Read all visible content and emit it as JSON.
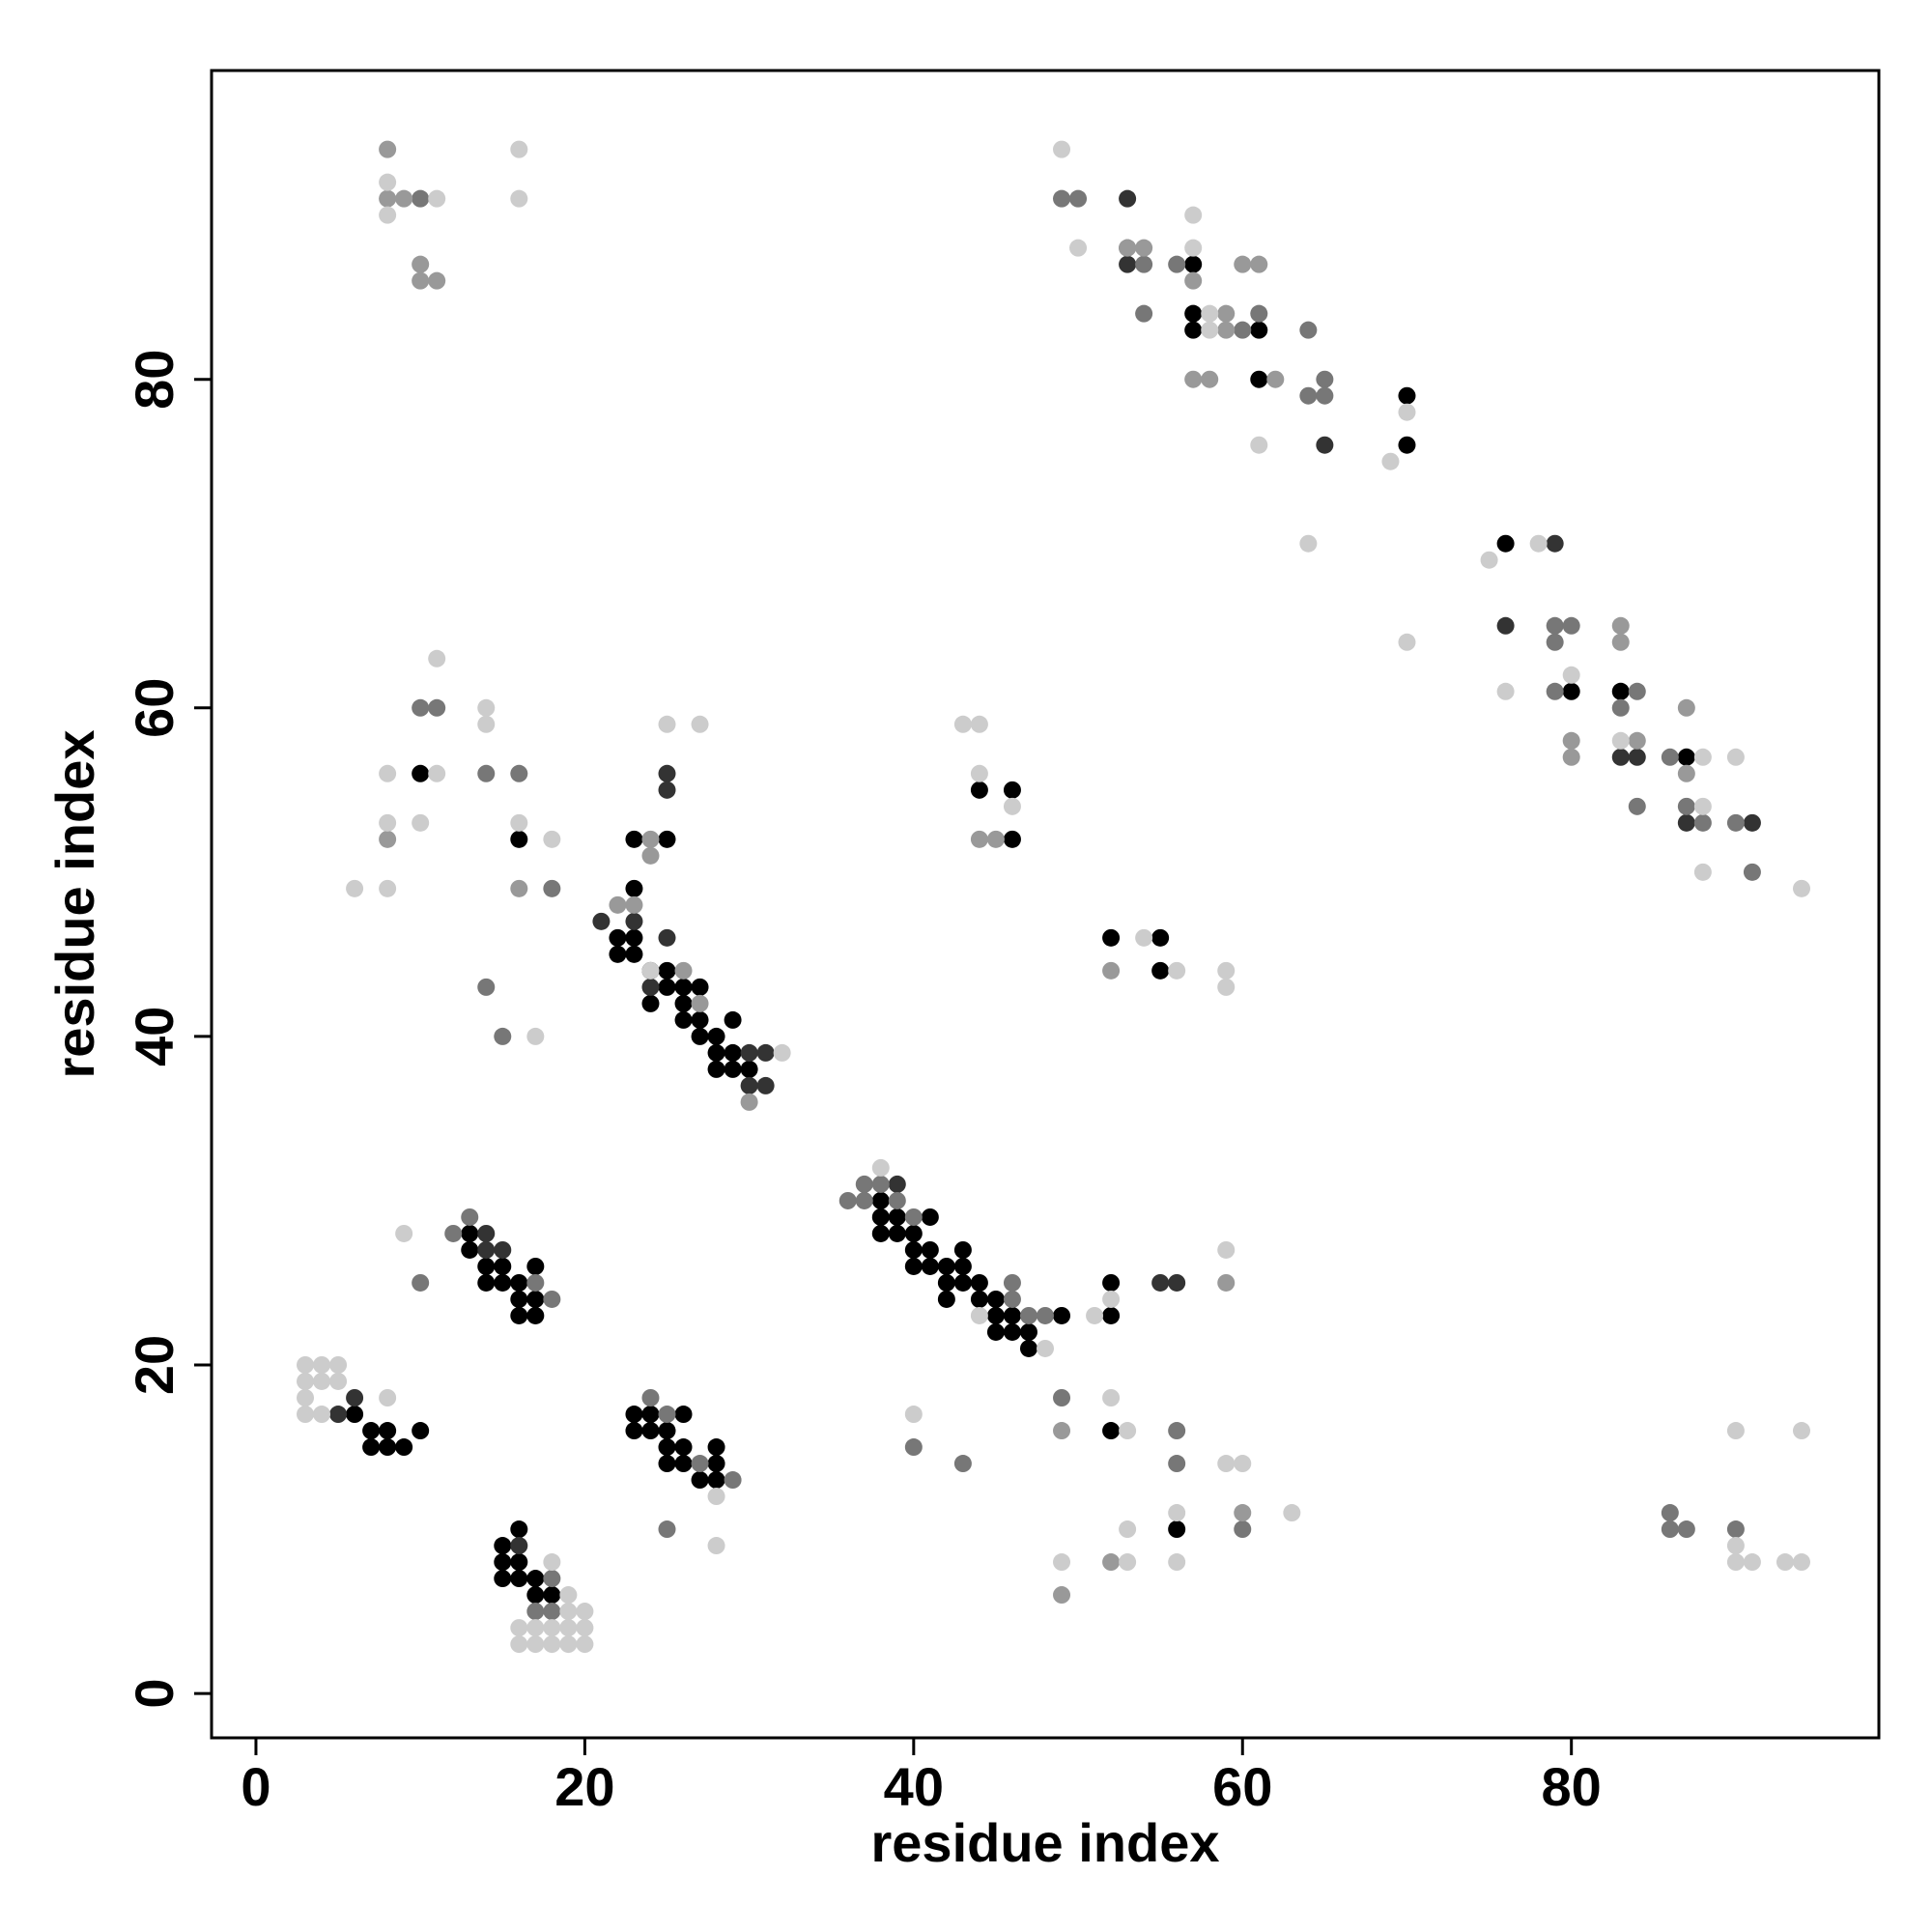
{
  "chart_data": {
    "type": "scatter",
    "x_label": "residue index",
    "y_label": "residue index",
    "xlim": [
      -2.7,
      98.7
    ],
    "ylim": [
      -2.7,
      98.8
    ],
    "xticks": [
      0,
      20,
      40,
      60,
      80
    ],
    "yticks": [
      0,
      20,
      40,
      60,
      80
    ],
    "grid": false,
    "series": [
      {
        "color": "#000000",
        "x": [
          6,
          7,
          7,
          8,
          9,
          10,
          8,
          13,
          13,
          14,
          14,
          15,
          15,
          16,
          16,
          17,
          17,
          17,
          16,
          15,
          15,
          15,
          16,
          16,
          16,
          17,
          17,
          18,
          23,
          23,
          24,
          25,
          25,
          26,
          26,
          27,
          28,
          28,
          28,
          26,
          24,
          25,
          22,
          22,
          23,
          23,
          23,
          24,
          24,
          25,
          25,
          26,
          26,
          26,
          27,
          27,
          27,
          28,
          28,
          28,
          29,
          29,
          29,
          30,
          23,
          25,
          16,
          10,
          38,
          38,
          38,
          39,
          39,
          40,
          40,
          40,
          41,
          41,
          41,
          42,
          42,
          42,
          43,
          43,
          43,
          44,
          44,
          45,
          45,
          45,
          46,
          46,
          47,
          47,
          49,
          52,
          52,
          52,
          56,
          44,
          46,
          46,
          52,
          55,
          55,
          57,
          61,
          70,
          76,
          80,
          83,
          87,
          57,
          57,
          61,
          70
        ],
        "values": [
          17,
          16,
          15,
          15,
          15,
          16,
          16,
          28,
          27,
          26,
          25,
          25,
          26,
          24,
          23,
          23,
          24,
          26,
          25,
          9,
          8,
          7,
          10,
          7,
          8,
          6,
          7,
          6,
          17,
          16,
          16,
          15,
          14,
          14,
          15,
          13,
          13,
          14,
          15,
          17,
          17,
          16,
          46,
          45,
          45,
          46,
          49,
          44,
          42,
          43,
          44,
          41,
          42,
          43,
          40,
          41,
          43,
          39,
          38,
          40,
          38,
          39,
          41,
          38,
          52,
          52,
          52,
          56,
          28,
          29,
          30,
          28,
          29,
          26,
          27,
          28,
          26,
          27,
          29,
          24,
          25,
          26,
          25,
          26,
          27,
          24,
          25,
          22,
          23,
          24,
          22,
          23,
          21,
          22,
          23,
          23,
          25,
          16,
          10,
          55,
          55,
          52,
          46,
          46,
          44,
          87,
          83,
          76,
          70,
          61,
          61,
          57,
          84,
          83,
          80,
          79
        ]
      },
      {
        "color": "#333333",
        "x": [
          53,
          53,
          65,
          76,
          79,
          83,
          84,
          87,
          91,
          55,
          56,
          6,
          5,
          14,
          15,
          31,
          31,
          30,
          30,
          24,
          25,
          23,
          21,
          25,
          25,
          39,
          16,
          14
        ],
        "values": [
          91,
          87,
          76,
          65,
          70,
          57,
          57,
          53,
          53,
          25,
          25,
          18,
          17,
          27,
          27,
          39,
          37,
          39,
          37,
          43,
          46,
          47,
          47,
          56,
          55,
          31,
          9,
          28
        ]
      },
      {
        "color": "#777777",
        "x": [
          10,
          14,
          15,
          14,
          16,
          11,
          10,
          18,
          13,
          12,
          37,
          36,
          37,
          38,
          39,
          40,
          46,
          46,
          48,
          47,
          49,
          40,
          43,
          56,
          56,
          60,
          25,
          24,
          25,
          27,
          29,
          17,
          18,
          18,
          54,
          54,
          56,
          60,
          61,
          64,
          64,
          65,
          65,
          79,
          79,
          80,
          79,
          83,
          84,
          84,
          87,
          88,
          86,
          90,
          91,
          90,
          87,
          86,
          86,
          50,
          49,
          53,
          10,
          18,
          17
        ],
        "values": [
          25,
          43,
          40,
          56,
          56,
          60,
          60,
          49,
          29,
          28,
          31,
          30,
          30,
          31,
          30,
          29,
          24,
          25,
          23,
          23,
          18,
          15,
          14,
          14,
          16,
          10,
          10,
          18,
          17,
          14,
          13,
          5,
          5,
          7,
          84,
          87,
          87,
          83,
          84,
          83,
          79,
          80,
          79,
          64,
          65,
          65,
          61,
          60,
          61,
          54,
          54,
          53,
          57,
          53,
          50,
          10,
          10,
          10,
          11,
          91,
          91,
          88,
          91,
          24,
          25
        ]
      },
      {
        "color": "#999999",
        "x": [
          8,
          8,
          9,
          10,
          10,
          11,
          8,
          16,
          24,
          24,
          23,
          22,
          26,
          27,
          30,
          52,
          52,
          49,
          59,
          60,
          49,
          87,
          87,
          83,
          83,
          80,
          80,
          84,
          57,
          59,
          59,
          57,
          58,
          60,
          61,
          62,
          53,
          54,
          44,
          45
        ],
        "values": [
          94,
          91,
          91,
          87,
          86,
          86,
          52,
          49,
          51,
          52,
          48,
          48,
          44,
          42,
          36,
          44,
          8,
          16,
          25,
          11,
          6,
          60,
          56,
          64,
          65,
          58,
          57,
          58,
          86,
          83,
          84,
          80,
          80,
          87,
          87,
          80,
          88,
          88,
          52,
          52
        ]
      },
      {
        "color": "#cccccc",
        "x": [
          3,
          3,
          3,
          3,
          4,
          4,
          4,
          5,
          5,
          8,
          9,
          8,
          8,
          11,
          16,
          16,
          11,
          8,
          11,
          10,
          8,
          8,
          6,
          14,
          14,
          16,
          18,
          17,
          25,
          27,
          24,
          32,
          38,
          44,
          48,
          51,
          52,
          40,
          52,
          53,
          53,
          53,
          56,
          56,
          59,
          59,
          60,
          63,
          49,
          49,
          50,
          57,
          57,
          58,
          58,
          61,
          64,
          69,
          70,
          70,
          75,
          76,
          78,
          80,
          83,
          88,
          88,
          88,
          90,
          90,
          90,
          90,
          91,
          93,
          94,
          94,
          94,
          43,
          44,
          44,
          46,
          54,
          56,
          59,
          59,
          28,
          28,
          16,
          16,
          17,
          17,
          18,
          18,
          19,
          19,
          19,
          20,
          20,
          20,
          18,
          19
        ],
        "values": [
          17,
          18,
          19,
          20,
          17,
          19,
          20,
          19,
          20,
          18,
          28,
          92,
          90,
          91,
          94,
          91,
          63,
          56,
          56,
          53,
          53,
          49,
          49,
          60,
          59,
          53,
          52,
          40,
          59,
          59,
          44,
          39,
          32,
          23,
          21,
          23,
          24,
          17,
          18,
          16,
          10,
          8,
          11,
          8,
          44,
          43,
          14,
          11,
          8,
          94,
          88,
          90,
          88,
          84,
          83,
          76,
          70,
          75,
          78,
          64,
          69,
          61,
          70,
          62,
          58,
          57,
          54,
          50,
          57,
          16,
          9,
          8,
          8,
          8,
          8,
          16,
          49,
          59,
          59,
          56,
          54,
          46,
          44,
          27,
          14,
          12,
          9,
          4,
          3,
          3,
          4,
          3,
          4,
          3,
          4,
          5,
          3,
          4,
          5,
          8,
          6
        ]
      }
    ]
  }
}
